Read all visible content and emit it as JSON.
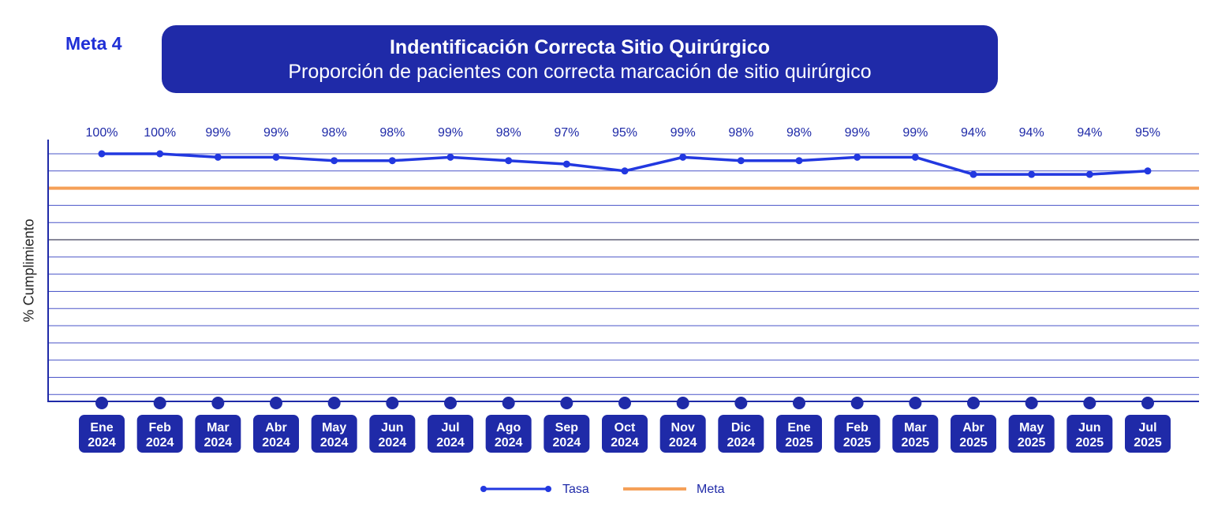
{
  "header": {
    "meta_label": "Meta 4",
    "title": "Indentificación Correcta Sitio Quirúrgico",
    "subtitle": "Proporción de pacientes con correcta marcación de sitio quirúrgico"
  },
  "colors": {
    "accent": "#1f2aa8",
    "line": "#2238e0",
    "meta": "#f5a058",
    "label_text": "#1f2aa8"
  },
  "chart_data": {
    "type": "line",
    "title": "Indentificación Correcta Sitio Quirúrgico",
    "subtitle": "Proporción de pacientes con correcta marcación de sitio quirúrgico",
    "xlabel": "",
    "ylabel": "% Cumplimiento",
    "categories": [
      [
        "Ene",
        "2024"
      ],
      [
        "Feb",
        "2024"
      ],
      [
        "Mar",
        "2024"
      ],
      [
        "Abr",
        "2024"
      ],
      [
        "May",
        "2024"
      ],
      [
        "Jun",
        "2024"
      ],
      [
        "Jul",
        "2024"
      ],
      [
        "Ago",
        "2024"
      ],
      [
        "Sep",
        "2024"
      ],
      [
        "Oct",
        "2024"
      ],
      [
        "Nov",
        "2024"
      ],
      [
        "Dic",
        "2024"
      ],
      [
        "Ene",
        "2025"
      ],
      [
        "Feb",
        "2025"
      ],
      [
        "Mar",
        "2025"
      ],
      [
        "Abr",
        "2025"
      ],
      [
        "May",
        "2025"
      ],
      [
        "Jun",
        "2025"
      ],
      [
        "Jul",
        "2025"
      ]
    ],
    "series": [
      {
        "name": "Tasa",
        "values": [
          100,
          100,
          99,
          99,
          98,
          98,
          99,
          98,
          97,
          95,
          99,
          98,
          98,
          99,
          99,
          94,
          94,
          94,
          95
        ],
        "labels": [
          "100%",
          "100%",
          "99%",
          "99%",
          "98%",
          "98%",
          "99%",
          "98%",
          "97%",
          "95%",
          "99%",
          "98%",
          "98%",
          "99%",
          "99%",
          "94%",
          "94%",
          "94%",
          "95%"
        ]
      },
      {
        "name": "Meta",
        "value": 90
      }
    ],
    "ylim": [
      28,
      104
    ],
    "grid": true,
    "legend_position": "bottom-center"
  },
  "legend": {
    "tasa": "Tasa",
    "meta": "Meta"
  }
}
